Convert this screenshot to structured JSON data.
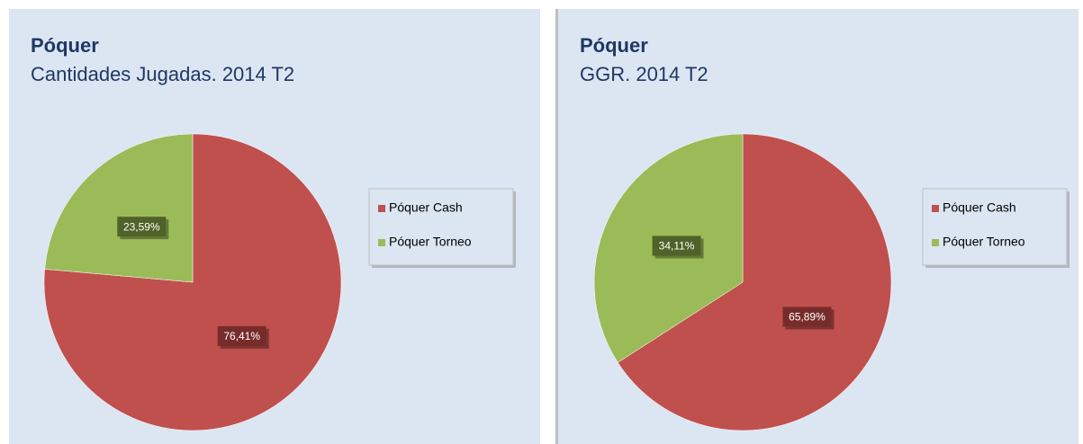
{
  "chart_data": [
    {
      "type": "pie",
      "title": "Póquer",
      "subtitle": "Cantidades Jugadas. 2014 T2",
      "categories": [
        "Póquer Cash",
        "Póquer Torneo"
      ],
      "values": [
        76.41,
        23.59
      ],
      "value_labels": [
        "76,41%",
        "23,59%"
      ],
      "colors": [
        "#c0504d",
        "#9bbb59"
      ],
      "legend": "right"
    },
    {
      "type": "pie",
      "title": "Póquer",
      "subtitle": "GGR. 2014 T2",
      "categories": [
        "Póquer Cash",
        "Póquer Torneo"
      ],
      "values": [
        65.89,
        34.11
      ],
      "value_labels": [
        "65,89%",
        "34,11%"
      ],
      "colors": [
        "#c0504d",
        "#9bbb59"
      ],
      "legend": "right"
    }
  ]
}
